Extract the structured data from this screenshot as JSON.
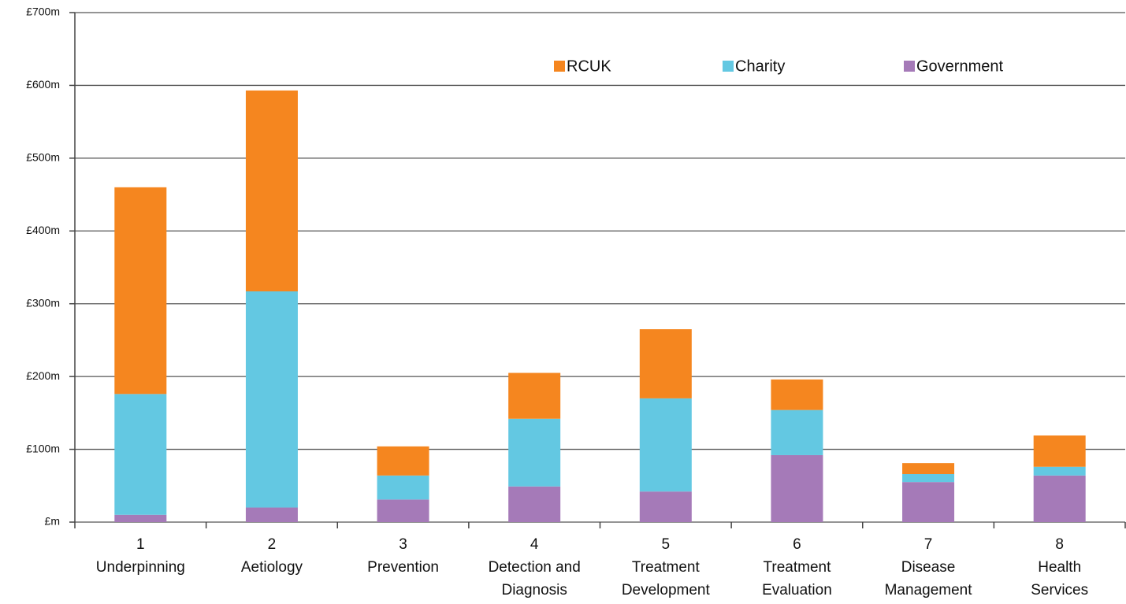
{
  "chart_data": {
    "type": "stacked_bar",
    "categories": [
      [
        "1",
        "Underpinning"
      ],
      [
        "2",
        "Aetiology"
      ],
      [
        "3",
        "Prevention"
      ],
      [
        "4",
        "Detection and",
        "Diagnosis"
      ],
      [
        "5",
        "Treatment",
        "Development"
      ],
      [
        "6",
        "Treatment",
        "Evaluation"
      ],
      [
        "7",
        "Disease",
        "Management"
      ],
      [
        "8",
        "Health",
        "Services"
      ]
    ],
    "series": [
      {
        "name": "RCUK",
        "color": "#f5861f",
        "values": [
          284,
          276,
          40,
          63,
          95,
          42,
          15,
          43
        ]
      },
      {
        "name": "Charity",
        "color": "#63c8e2",
        "values": [
          166,
          297,
          33,
          93,
          128,
          62,
          11,
          12
        ]
      },
      {
        "name": "Government",
        "color": "#a57ab8",
        "values": [
          10,
          20,
          31,
          49,
          42,
          92,
          55,
          64
        ]
      }
    ],
    "ylim": [
      0,
      700
    ],
    "yticks": [
      {
        "value": 0,
        "label": "£m"
      },
      {
        "value": 100,
        "label": "£100m"
      },
      {
        "value": 200,
        "label": "£200m"
      },
      {
        "value": 300,
        "label": "£300m"
      },
      {
        "value": 400,
        "label": "£400m"
      },
      {
        "value": 500,
        "label": "£500m"
      },
      {
        "value": 600,
        "label": "£600m"
      },
      {
        "value": 700,
        "label": "£700m"
      }
    ],
    "grid": true,
    "legend": "top"
  }
}
